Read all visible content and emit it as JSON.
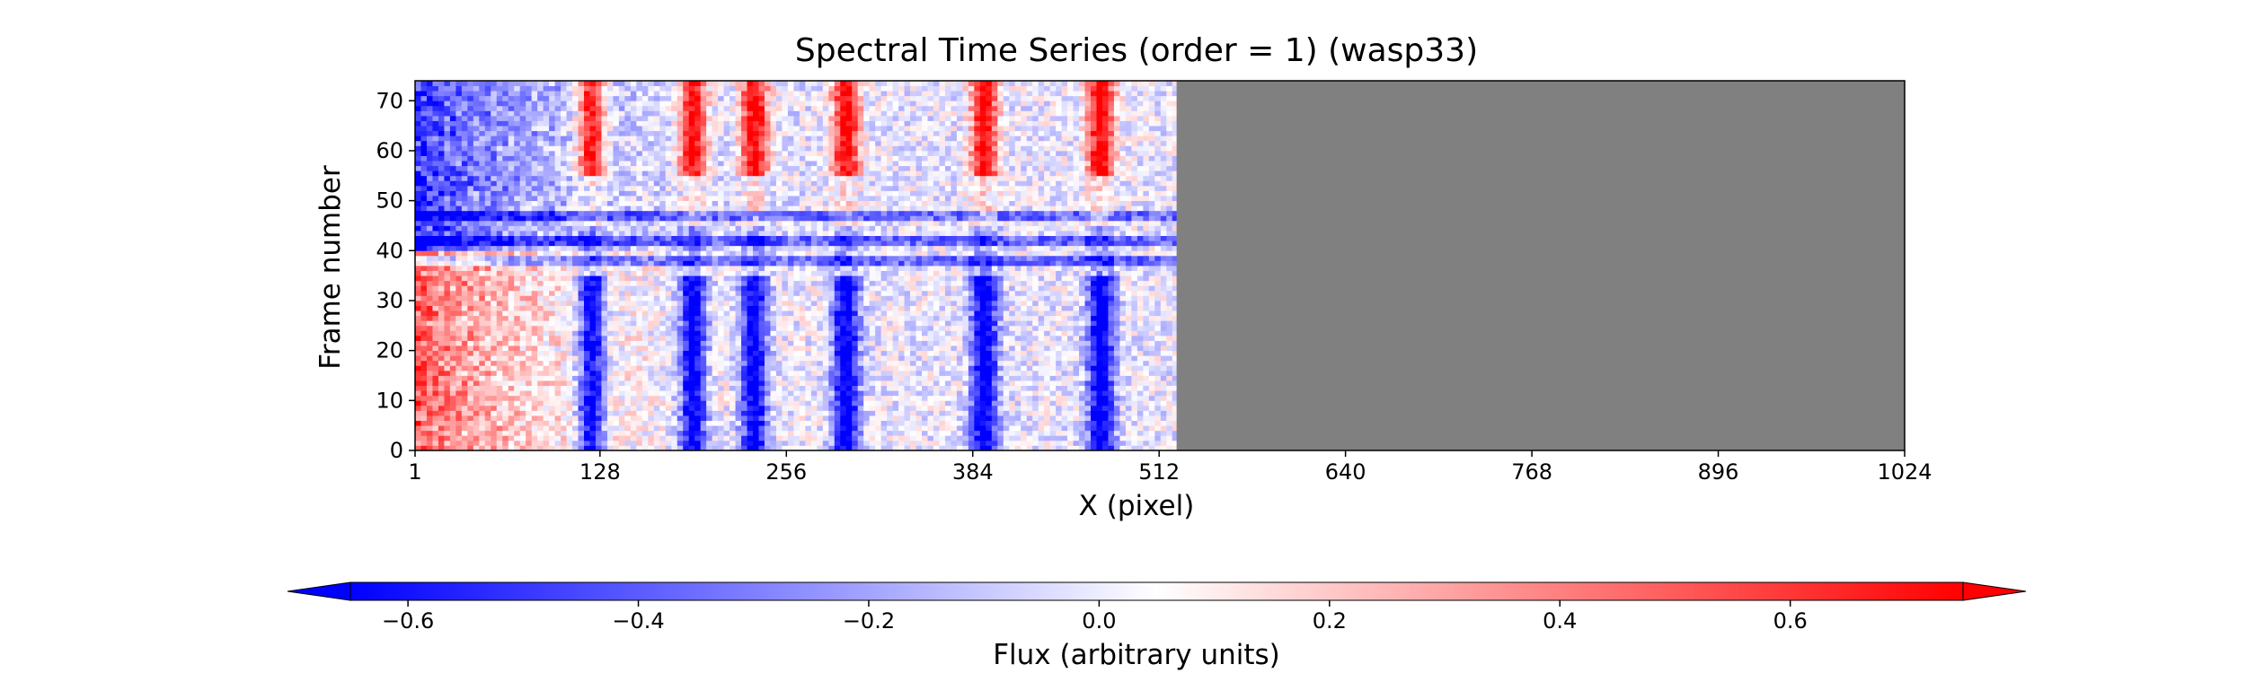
{
  "chart_data": {
    "type": "heatmap",
    "title": "Spectral Time Series (order = 1) (wasp33)",
    "xlabel": "X (pixel)",
    "ylabel": "Frame number",
    "x_ticks": [
      1,
      128,
      256,
      384,
      512,
      640,
      768,
      896,
      1024
    ],
    "y_ticks": [
      0,
      10,
      20,
      30,
      40,
      50,
      60,
      70
    ],
    "xlim": [
      1,
      1024
    ],
    "ylim": [
      0,
      74
    ],
    "data_x_extent": [
      1,
      524
    ],
    "masked_x_extent": [
      524,
      1024
    ],
    "masked_color": "#808080",
    "grid": false,
    "colormap": "bwr",
    "colorbar": {
      "label": "Flux (arbitrary units)",
      "ticks": [
        "−0.6",
        "−0.4",
        "−0.2",
        "0.0",
        "0.2",
        "0.4",
        "0.6"
      ],
      "tick_values": [
        -0.6,
        -0.4,
        -0.2,
        0.0,
        0.2,
        0.4,
        0.6
      ],
      "range": [
        -0.65,
        0.75
      ],
      "extend": "both",
      "orientation": "horizontal",
      "placement": "bottom"
    },
    "absorption_columns_x": [
      120,
      190,
      232,
      295,
      390,
      470
    ],
    "frame_features": {
      "red_frames": [
        [
          55,
          74
        ]
      ],
      "blue_frames": [
        [
          0,
          35
        ]
      ],
      "dark_rows": [
        38,
        42,
        47
      ]
    }
  }
}
